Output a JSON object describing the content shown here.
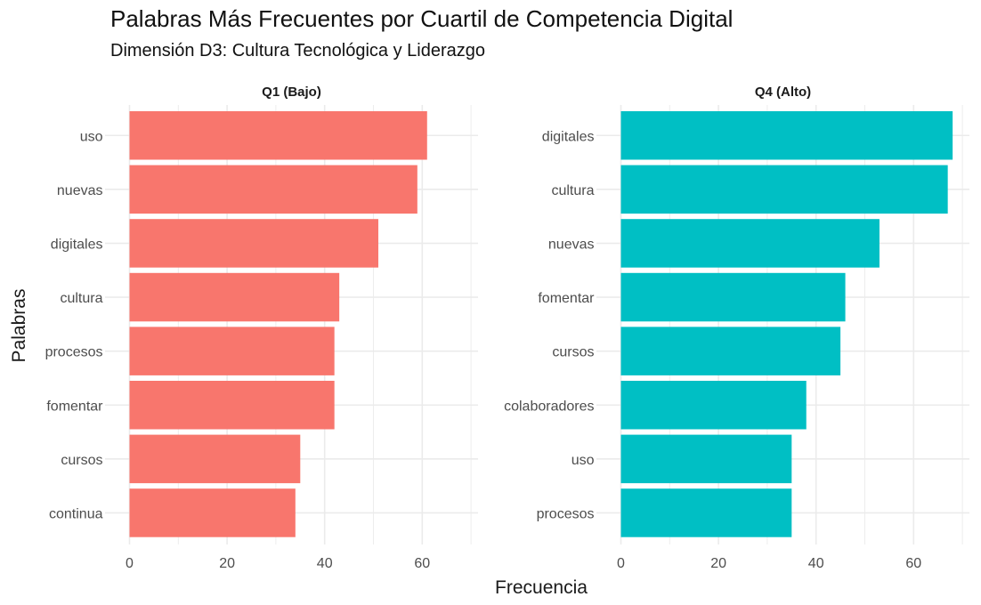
{
  "chart_data": {
    "type": "bar",
    "orientation": "horizontal",
    "title": "Palabras Más Frecuentes por Cuartil de Competencia Digital",
    "subtitle": "Dimensión D3: Cultura Tecnológica y Liderazgo",
    "xlabel": "Frecuencia",
    "ylabel": "Palabras",
    "xlim": [
      0,
      70
    ],
    "x_ticks": [
      0,
      20,
      40,
      60
    ],
    "grid": true,
    "legend": "none",
    "panels": [
      {
        "label": "Q1 (Bajo)",
        "color": "#F8766D",
        "categories": [
          "uso",
          "nuevas",
          "digitales",
          "cultura",
          "procesos",
          "fomentar",
          "cursos",
          "continua"
        ],
        "values": [
          61,
          59,
          51,
          43,
          42,
          42,
          35,
          34
        ]
      },
      {
        "label": "Q4 (Alto)",
        "color": "#00BFC4",
        "categories": [
          "digitales",
          "cultura",
          "nuevas",
          "fomentar",
          "cursos",
          "colaboradores",
          "uso",
          "procesos"
        ],
        "values": [
          68,
          67,
          53,
          46,
          45,
          38,
          35,
          35
        ]
      }
    ]
  }
}
